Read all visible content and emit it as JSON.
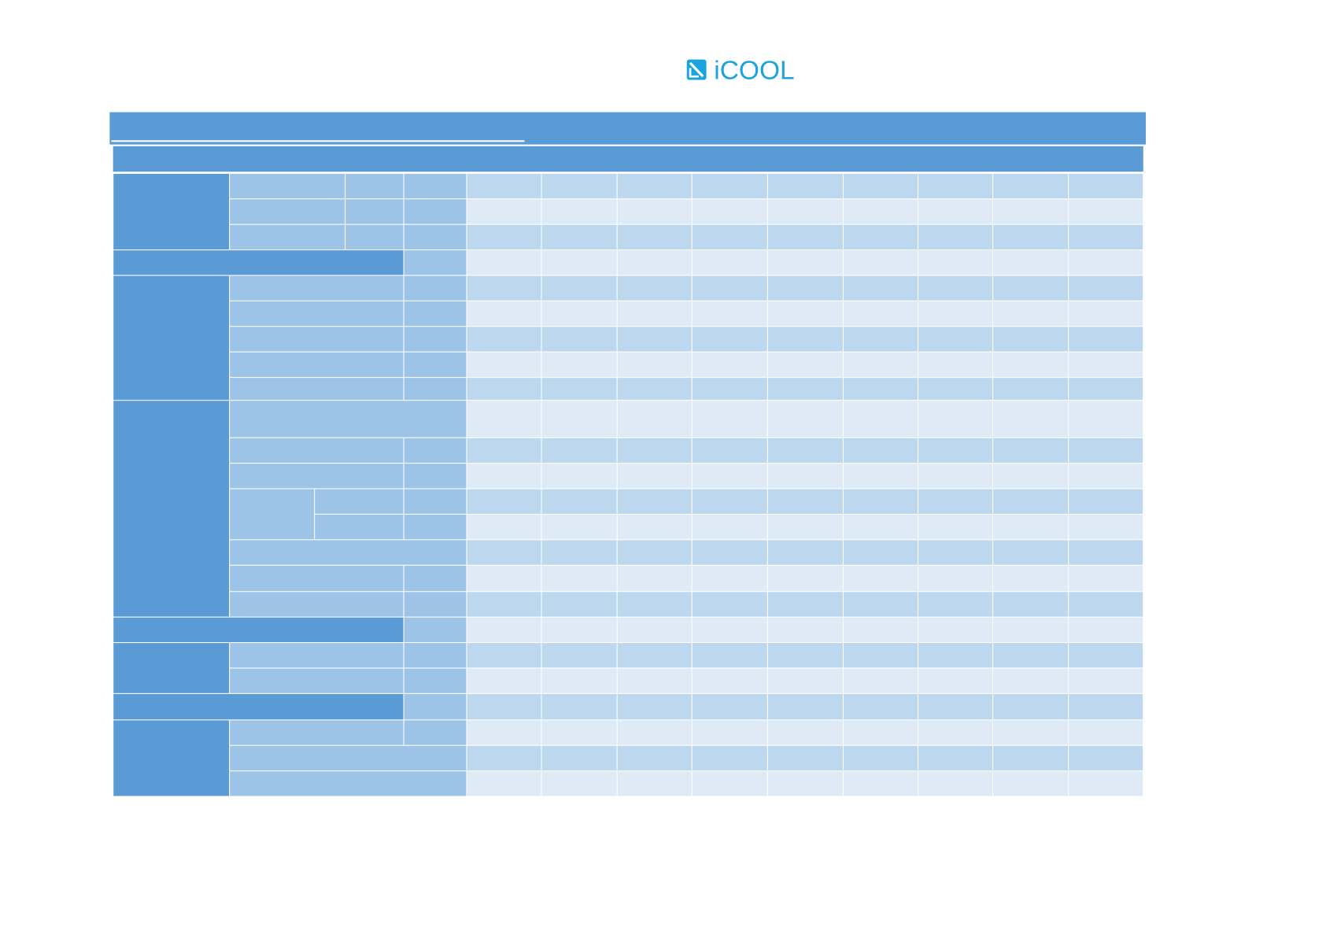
{
  "header": {
    "logo": "iCOOL"
  }
}
